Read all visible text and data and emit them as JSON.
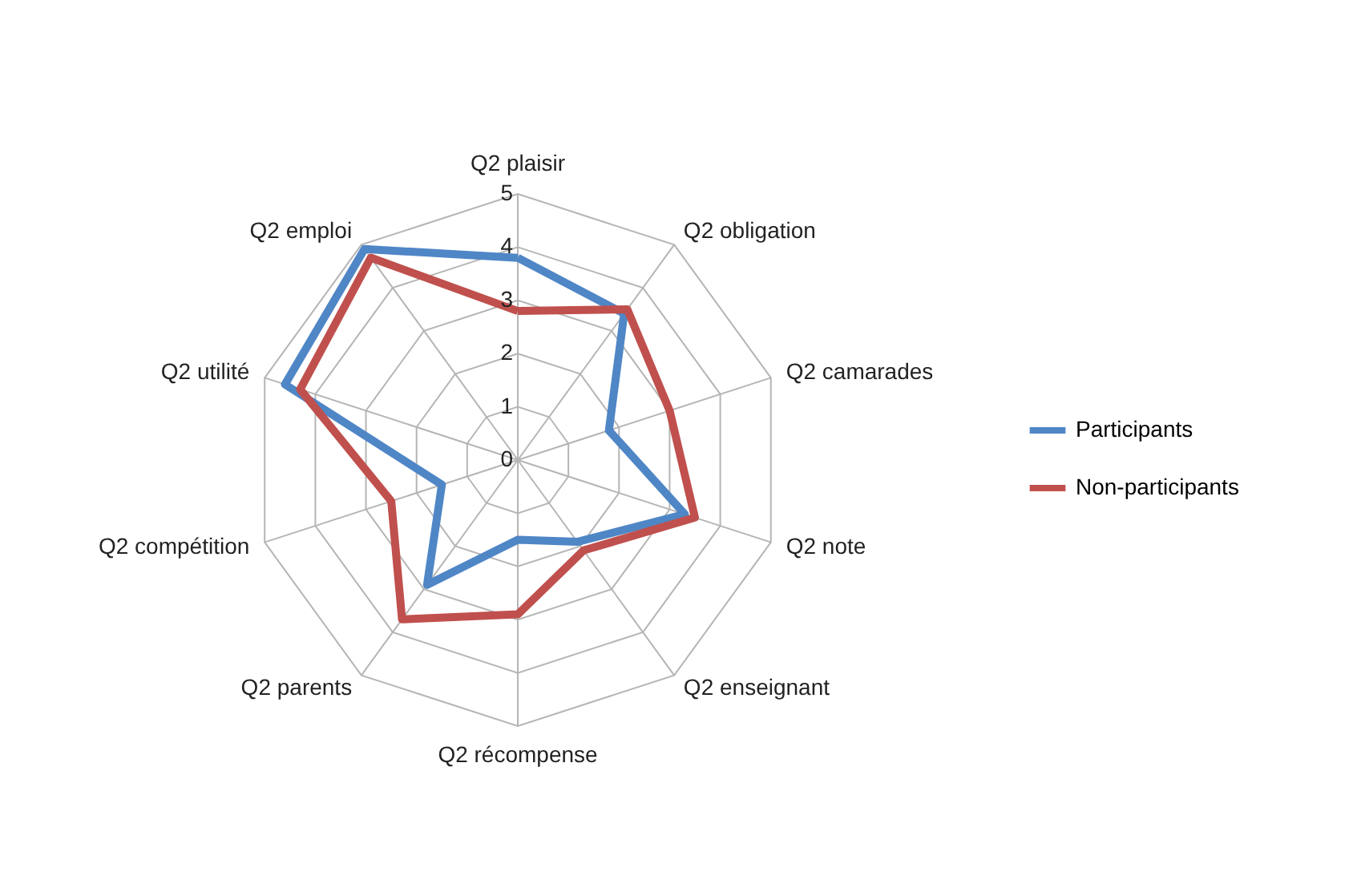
{
  "chart_data": {
    "type": "radar",
    "categories": [
      "Q2 plaisir",
      "Q2 obligation",
      "Q2 camarades",
      "Q2 note",
      "Q2 enseignant",
      "Q2 récompense",
      "Q2 parents",
      "Q2 compétition",
      "Q2 utilité",
      "Q2 emploi"
    ],
    "series": [
      {
        "name": "Participants",
        "color": "#4f86c6",
        "values": [
          3.8,
          3.4,
          1.8,
          3.3,
          1.9,
          1.5,
          2.9,
          1.5,
          4.6,
          4.9
        ]
      },
      {
        "name": "Non-participants",
        "color": "#c0504d",
        "values": [
          2.8,
          3.5,
          3.0,
          3.5,
          2.1,
          2.9,
          3.7,
          2.5,
          4.3,
          4.7
        ]
      }
    ],
    "ylim": [
      0,
      5
    ],
    "yticks": [
      0,
      1,
      2,
      3,
      4,
      5
    ],
    "grid": true,
    "legend": "right"
  }
}
